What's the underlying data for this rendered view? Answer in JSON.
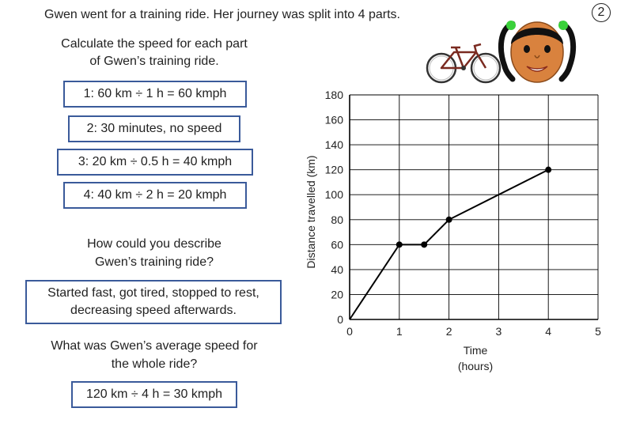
{
  "header": {
    "intro": "Gwen went for a training ride. Her journey was split into 4 parts.",
    "badge": "2"
  },
  "task1": {
    "line1": "Calculate the speed for each part",
    "line2": "of Gwen’s training ride."
  },
  "answers": [
    "1:   60 km ÷ 1 h = 60 kmph",
    "2:  30 minutes, no speed",
    "3:   20 km ÷ 0.5 h = 40 kmph",
    "4:   40 km ÷ 2 h = 20 kmph"
  ],
  "task2": {
    "line1": "How could you describe",
    "line2": "Gwen’s training ride?",
    "answer_line1": "Started fast, got tired, stopped to rest,",
    "answer_line2": "decreasing speed afterwards."
  },
  "task3": {
    "line1": "What was Gwen’s average speed for",
    "line2": "the whole ride?",
    "answer": "120 km ÷ 4 h = 30 kmph"
  },
  "chart_data": {
    "type": "line",
    "x": [
      0,
      1,
      1.5,
      2,
      4
    ],
    "y": [
      0,
      60,
      60,
      80,
      120
    ],
    "xlim": [
      0,
      5
    ],
    "ylim": [
      0,
      180
    ],
    "xticks": [
      0,
      1,
      2,
      3,
      4,
      5
    ],
    "yticks": [
      0,
      20,
      40,
      60,
      80,
      100,
      120,
      140,
      160,
      180
    ],
    "xlabel_line1": "Time",
    "xlabel_line2": "(hours)",
    "ylabel": "Distance travelled (km)",
    "grid": true,
    "line_color": "#000000",
    "grid_color": "#000000"
  },
  "colors": {
    "box_border": "#3a5a9a",
    "hair_clip": "#3ad13a",
    "face": "#d9823e"
  },
  "icons": [
    "bicycle-icon",
    "girl-face-icon"
  ]
}
